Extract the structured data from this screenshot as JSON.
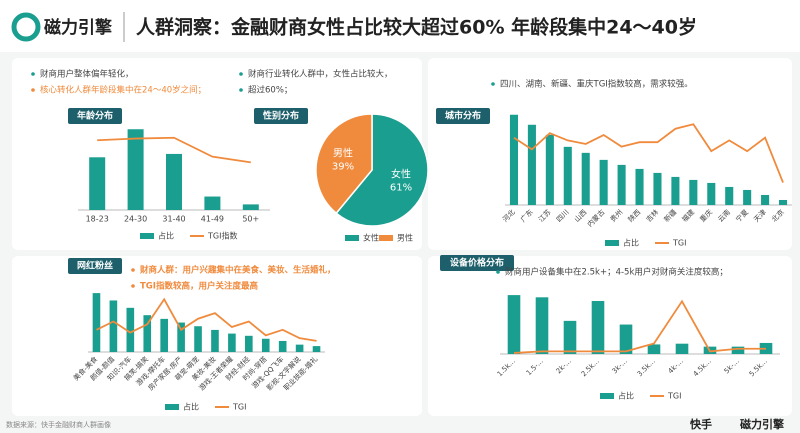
{
  "header": {
    "logo": "磁力引擎",
    "title": "人群洞察：金融财商女性占比较大超过60% 年龄段集中24～40岁"
  },
  "chart_data": [
    {
      "type": "bar",
      "tag": "年龄分布",
      "notes": [
        "财商用户整体偏年轻化，",
        "核心转化人群年龄段集中在24～40岁之间；"
      ],
      "categories": [
        "18-23",
        "24-30",
        "31-40",
        "41-49",
        "50+"
      ],
      "series": [
        {
          "name": "占比",
          "color": "#1a9e8f",
          "values": [
            47,
            72,
            50,
            12,
            5
          ]
        },
        {
          "name": "TGI指数",
          "color": "#f08a3c",
          "type": "line",
          "values": [
            85,
            87,
            88,
            65,
            58
          ]
        }
      ]
    },
    {
      "type": "pie",
      "tag": "性别分布",
      "notes": [
        "财商行业转化人群中，女性占比较大，",
        "超过60%；"
      ],
      "categories": [
        "女性",
        "男性"
      ],
      "values": [
        61,
        39
      ],
      "value_labels": [
        "61%",
        "39%"
      ],
      "colors": [
        "#1a9e8f",
        "#f08a3c"
      ]
    },
    {
      "type": "bar",
      "tag": "城市分布",
      "notes": [
        "四川、湖南、新疆、重庆TGI指数较高，需求较强。"
      ],
      "categories": [
        "河北",
        "广东",
        "江苏",
        "四川",
        "山西",
        "内蒙古",
        "贵州",
        "陕西",
        "吉林",
        "新疆",
        "福建",
        "重庆",
        "云南",
        "宁夏",
        "天津",
        "北京"
      ],
      "series": [
        {
          "name": "占比",
          "color": "#1a9e8f",
          "values": [
            90,
            80,
            70,
            58,
            52,
            45,
            40,
            36,
            32,
            28,
            25,
            22,
            18,
            15,
            10,
            5
          ]
        },
        {
          "name": "TGI",
          "color": "#f08a3c",
          "type": "line",
          "values": [
            75,
            62,
            80,
            72,
            68,
            78,
            65,
            70,
            70,
            85,
            90,
            60,
            72,
            60,
            75,
            25
          ]
        }
      ]
    },
    {
      "type": "bar",
      "tag": "网红粉丝",
      "notes": [
        "财商人群：用户兴趣集中在美食、美妆、生活婚礼，",
        "TGI指数较高，用户关注度最高"
      ],
      "categories": [
        "美食-美食",
        "颜值-颜值",
        "知识-汽车",
        "搞笑-搞笑",
        "游戏-摩托车",
        "房产家居-房产",
        "萌宠-萌宠",
        "美妆-美妆",
        "游戏-王者荣耀",
        "财经-财经",
        "时尚-穿搭",
        "游戏-QQ飞车",
        "影视-文字解说",
        "职业技能-婚礼"
      ],
      "series": [
        {
          "name": "占比",
          "color": "#1a9e8f",
          "values": [
            80,
            70,
            60,
            50,
            45,
            40,
            35,
            30,
            25,
            22,
            18,
            15,
            10,
            8
          ]
        },
        {
          "name": "TGI",
          "color": "#f08a3c",
          "type": "line",
          "values": [
            40,
            55,
            35,
            50,
            95,
            40,
            60,
            70,
            45,
            55,
            30,
            40,
            25,
            20
          ]
        }
      ]
    },
    {
      "type": "bar",
      "tag": "设备价格分布",
      "notes": [
        "财商用户设备集中在2.5k+；4-5k用户对财商关注度较高；"
      ],
      "categories": [
        "1.5k...",
        "1.5-...",
        "2k-...",
        "2.5k...",
        "3k-...",
        "3.5k...",
        "4k-...",
        "4.5k...",
        "5k-...",
        "5.5k..."
      ],
      "series": [
        {
          "name": "占比",
          "color": "#1a9e8f",
          "values": [
            80,
            77,
            45,
            72,
            40,
            13,
            14,
            10,
            10,
            15
          ]
        },
        {
          "name": "TGI",
          "color": "#f08a3c",
          "type": "line",
          "values": [
            2,
            5,
            5,
            5,
            5,
            20,
            100,
            5,
            10,
            10
          ]
        }
      ]
    }
  ],
  "footer": {
    "source": "数据来源：快手金融财商人群画像",
    "brand1": "快手",
    "brand2": "磁力引擎"
  }
}
